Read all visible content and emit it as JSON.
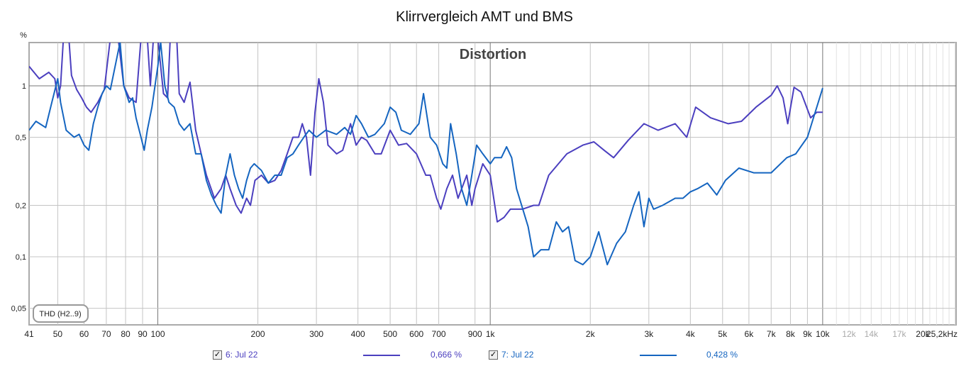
{
  "chart_data": {
    "type": "line",
    "title": "Klirrvergleich AMT und BMS",
    "subtitle": "Distortion",
    "ylabel": "%",
    "xlabel": "Hz",
    "x_scale": "log",
    "y_scale": "log",
    "xlim": [
      41,
      25200
    ],
    "ylim": [
      0.04,
      1.79
    ],
    "grid": true,
    "annotation": "THD (H2..9)",
    "x_ticks": [
      {
        "v": 41,
        "label": "41"
      },
      {
        "v": 50,
        "label": "50"
      },
      {
        "v": 60,
        "label": "60"
      },
      {
        "v": 70,
        "label": "70"
      },
      {
        "v": 80,
        "label": "80"
      },
      {
        "v": 90,
        "label": "90"
      },
      {
        "v": 100,
        "label": "100"
      },
      {
        "v": 200,
        "label": "200"
      },
      {
        "v": 300,
        "label": "300"
      },
      {
        "v": 400,
        "label": "400"
      },
      {
        "v": 500,
        "label": "500"
      },
      {
        "v": 600,
        "label": "600"
      },
      {
        "v": 700,
        "label": "700"
      },
      {
        "v": 900,
        "label": "900"
      },
      {
        "v": 1000,
        "label": "1k"
      },
      {
        "v": 2000,
        "label": "2k"
      },
      {
        "v": 3000,
        "label": "3k"
      },
      {
        "v": 4000,
        "label": "4k"
      },
      {
        "v": 5000,
        "label": "5k"
      },
      {
        "v": 6000,
        "label": "6k"
      },
      {
        "v": 7000,
        "label": "7k"
      },
      {
        "v": 8000,
        "label": "8k"
      },
      {
        "v": 9000,
        "label": "9k"
      },
      {
        "v": 10000,
        "label": "10k"
      },
      {
        "v": 12000,
        "label": "12k",
        "faded": true
      },
      {
        "v": 14000,
        "label": "14k",
        "faded": true
      },
      {
        "v": 17000,
        "label": "17k",
        "faded": true
      },
      {
        "v": 20000,
        "label": "20k"
      },
      {
        "v": 25200,
        "label": "25,2kHz"
      }
    ],
    "y_ticks": [
      {
        "v": 1,
        "label": "1"
      },
      {
        "v": 0.5,
        "label": "0,5"
      },
      {
        "v": 0.2,
        "label": "0,2"
      },
      {
        "v": 0.1,
        "label": "0,1"
      },
      {
        "v": 0.05,
        "label": "0,05"
      }
    ],
    "series": [
      {
        "name": "6: Jul 22",
        "value_label": "0,666 %",
        "color": "#4b3fbf",
        "points": [
          [
            41,
            1.3
          ],
          [
            44,
            1.1
          ],
          [
            47,
            1.2
          ],
          [
            49,
            1.1
          ],
          [
            50,
            0.85
          ],
          [
            51,
            1.0
          ],
          [
            52,
            1.9
          ],
          [
            54,
            1.9
          ],
          [
            55,
            1.15
          ],
          [
            57,
            0.95
          ],
          [
            59,
            0.85
          ],
          [
            61,
            0.75
          ],
          [
            63,
            0.7
          ],
          [
            66,
            0.8
          ],
          [
            69,
            0.95
          ],
          [
            72,
            1.9
          ],
          [
            76,
            1.9
          ],
          [
            79,
            1.0
          ],
          [
            82,
            0.85
          ],
          [
            86,
            0.8
          ],
          [
            89,
            1.9
          ],
          [
            93,
            1.9
          ],
          [
            95,
            1.0
          ],
          [
            97,
            1.9
          ],
          [
            100,
            1.9
          ],
          [
            104,
            0.9
          ],
          [
            107,
            0.85
          ],
          [
            109,
            1.9
          ],
          [
            114,
            1.9
          ],
          [
            116,
            0.9
          ],
          [
            120,
            0.8
          ],
          [
            125,
            1.05
          ],
          [
            130,
            0.55
          ],
          [
            135,
            0.4
          ],
          [
            140,
            0.3
          ],
          [
            148,
            0.22
          ],
          [
            155,
            0.25
          ],
          [
            160,
            0.3
          ],
          [
            165,
            0.25
          ],
          [
            172,
            0.2
          ],
          [
            178,
            0.18
          ],
          [
            185,
            0.22
          ],
          [
            190,
            0.2
          ],
          [
            196,
            0.28
          ],
          [
            205,
            0.3
          ],
          [
            215,
            0.27
          ],
          [
            225,
            0.28
          ],
          [
            235,
            0.32
          ],
          [
            245,
            0.4
          ],
          [
            255,
            0.5
          ],
          [
            265,
            0.5
          ],
          [
            272,
            0.6
          ],
          [
            280,
            0.5
          ],
          [
            288,
            0.3
          ],
          [
            297,
            0.7
          ],
          [
            305,
            1.1
          ],
          [
            315,
            0.8
          ],
          [
            325,
            0.45
          ],
          [
            345,
            0.4
          ],
          [
            360,
            0.42
          ],
          [
            380,
            0.6
          ],
          [
            395,
            0.45
          ],
          [
            410,
            0.5
          ],
          [
            425,
            0.48
          ],
          [
            450,
            0.4
          ],
          [
            470,
            0.4
          ],
          [
            500,
            0.55
          ],
          [
            530,
            0.45
          ],
          [
            560,
            0.46
          ],
          [
            600,
            0.4
          ],
          [
            640,
            0.3
          ],
          [
            660,
            0.3
          ],
          [
            690,
            0.22
          ],
          [
            710,
            0.19
          ],
          [
            740,
            0.25
          ],
          [
            770,
            0.3
          ],
          [
            800,
            0.22
          ],
          [
            850,
            0.3
          ],
          [
            880,
            0.2
          ],
          [
            900,
            0.25
          ],
          [
            950,
            0.35
          ],
          [
            1000,
            0.3
          ],
          [
            1050,
            0.16
          ],
          [
            1100,
            0.17
          ],
          [
            1150,
            0.19
          ],
          [
            1250,
            0.19
          ],
          [
            1350,
            0.2
          ],
          [
            1400,
            0.2
          ],
          [
            1500,
            0.3
          ],
          [
            1700,
            0.4
          ],
          [
            1900,
            0.45
          ],
          [
            2050,
            0.47
          ],
          [
            2200,
            0.42
          ],
          [
            2350,
            0.38
          ],
          [
            2600,
            0.48
          ],
          [
            2900,
            0.6
          ],
          [
            3200,
            0.55
          ],
          [
            3600,
            0.6
          ],
          [
            3900,
            0.5
          ],
          [
            4150,
            0.75
          ],
          [
            4600,
            0.65
          ],
          [
            5200,
            0.6
          ],
          [
            5700,
            0.62
          ],
          [
            6300,
            0.75
          ],
          [
            7000,
            0.88
          ],
          [
            7300,
            1.0
          ],
          [
            7600,
            0.85
          ],
          [
            7850,
            0.6
          ],
          [
            8200,
            0.98
          ],
          [
            8600,
            0.92
          ],
          [
            9200,
            0.65
          ],
          [
            9600,
            0.7
          ],
          [
            10000,
            0.7
          ]
        ]
      },
      {
        "name": "7: Jul 22",
        "value_label": "0,428 %",
        "color": "#1565c0",
        "points": [
          [
            41,
            0.55
          ],
          [
            43,
            0.62
          ],
          [
            46,
            0.57
          ],
          [
            48,
            0.8
          ],
          [
            50,
            1.1
          ],
          [
            51,
            0.8
          ],
          [
            53,
            0.55
          ],
          [
            56,
            0.5
          ],
          [
            58,
            0.52
          ],
          [
            60,
            0.45
          ],
          [
            62,
            0.42
          ],
          [
            64,
            0.6
          ],
          [
            66,
            0.75
          ],
          [
            68,
            0.9
          ],
          [
            70,
            1.0
          ],
          [
            72,
            0.95
          ],
          [
            75,
            1.4
          ],
          [
            77,
            1.8
          ],
          [
            79,
            1.0
          ],
          [
            82,
            0.8
          ],
          [
            84,
            0.85
          ],
          [
            86,
            0.65
          ],
          [
            89,
            0.5
          ],
          [
            91,
            0.42
          ],
          [
            93,
            0.55
          ],
          [
            96,
            0.75
          ],
          [
            100,
            1.3
          ],
          [
            102,
            1.8
          ],
          [
            105,
            1.0
          ],
          [
            108,
            0.8
          ],
          [
            112,
            0.75
          ],
          [
            116,
            0.6
          ],
          [
            120,
            0.55
          ],
          [
            125,
            0.6
          ],
          [
            130,
            0.4
          ],
          [
            135,
            0.4
          ],
          [
            140,
            0.28
          ],
          [
            145,
            0.23
          ],
          [
            150,
            0.2
          ],
          [
            155,
            0.18
          ],
          [
            160,
            0.3
          ],
          [
            165,
            0.4
          ],
          [
            170,
            0.3
          ],
          [
            175,
            0.25
          ],
          [
            180,
            0.22
          ],
          [
            185,
            0.28
          ],
          [
            190,
            0.33
          ],
          [
            195,
            0.35
          ],
          [
            205,
            0.32
          ],
          [
            215,
            0.27
          ],
          [
            225,
            0.3
          ],
          [
            235,
            0.3
          ],
          [
            245,
            0.38
          ],
          [
            255,
            0.4
          ],
          [
            265,
            0.45
          ],
          [
            275,
            0.5
          ],
          [
            285,
            0.55
          ],
          [
            300,
            0.5
          ],
          [
            320,
            0.55
          ],
          [
            345,
            0.52
          ],
          [
            365,
            0.57
          ],
          [
            380,
            0.52
          ],
          [
            395,
            0.67
          ],
          [
            410,
            0.6
          ],
          [
            430,
            0.5
          ],
          [
            450,
            0.52
          ],
          [
            480,
            0.6
          ],
          [
            500,
            0.75
          ],
          [
            520,
            0.7
          ],
          [
            540,
            0.55
          ],
          [
            575,
            0.52
          ],
          [
            610,
            0.6
          ],
          [
            630,
            0.9
          ],
          [
            660,
            0.5
          ],
          [
            690,
            0.45
          ],
          [
            720,
            0.35
          ],
          [
            740,
            0.33
          ],
          [
            760,
            0.6
          ],
          [
            790,
            0.4
          ],
          [
            820,
            0.25
          ],
          [
            850,
            0.2
          ],
          [
            880,
            0.3
          ],
          [
            910,
            0.45
          ],
          [
            950,
            0.4
          ],
          [
            1000,
            0.35
          ],
          [
            1030,
            0.38
          ],
          [
            1080,
            0.38
          ],
          [
            1120,
            0.44
          ],
          [
            1160,
            0.38
          ],
          [
            1200,
            0.25
          ],
          [
            1300,
            0.15
          ],
          [
            1350,
            0.1
          ],
          [
            1420,
            0.11
          ],
          [
            1500,
            0.11
          ],
          [
            1580,
            0.16
          ],
          [
            1650,
            0.14
          ],
          [
            1720,
            0.15
          ],
          [
            1800,
            0.095
          ],
          [
            1900,
            0.09
          ],
          [
            2000,
            0.1
          ],
          [
            2120,
            0.14
          ],
          [
            2250,
            0.09
          ],
          [
            2400,
            0.12
          ],
          [
            2550,
            0.14
          ],
          [
            2700,
            0.2
          ],
          [
            2800,
            0.24
          ],
          [
            2900,
            0.15
          ],
          [
            3000,
            0.22
          ],
          [
            3100,
            0.19
          ],
          [
            3300,
            0.2
          ],
          [
            3600,
            0.22
          ],
          [
            3800,
            0.22
          ],
          [
            4000,
            0.24
          ],
          [
            4200,
            0.25
          ],
          [
            4500,
            0.27
          ],
          [
            4800,
            0.23
          ],
          [
            5100,
            0.28
          ],
          [
            5600,
            0.33
          ],
          [
            6200,
            0.31
          ],
          [
            7000,
            0.31
          ],
          [
            7800,
            0.38
          ],
          [
            8300,
            0.4
          ],
          [
            9000,
            0.5
          ],
          [
            10000,
            0.97
          ]
        ]
      }
    ]
  }
}
